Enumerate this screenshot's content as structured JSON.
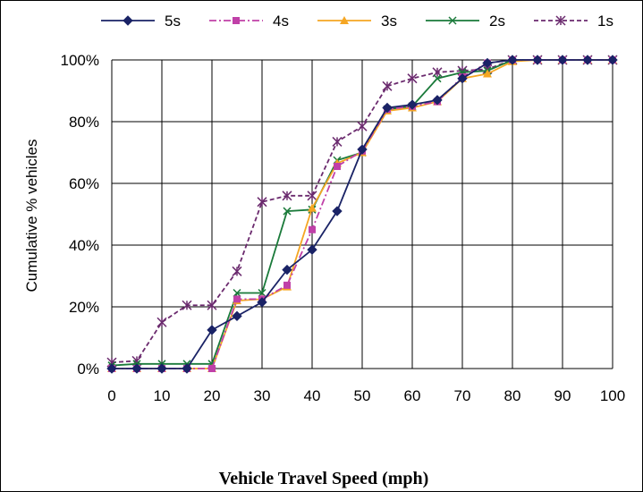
{
  "chart_data": {
    "type": "line",
    "xlabel": "Vehicle Travel Speed (mph)",
    "ylabel": "Cumulative % vehicles",
    "xlim": [
      0,
      100
    ],
    "ylim": [
      0,
      100
    ],
    "x_ticks": [
      "0",
      "10",
      "20",
      "30",
      "40",
      "50",
      "60",
      "70",
      "80",
      "90",
      "100"
    ],
    "y_ticks": [
      "0%",
      "20%",
      "40%",
      "60%",
      "80%",
      "100%"
    ],
    "grid": true,
    "legend_position": "top",
    "x": [
      0,
      5,
      10,
      15,
      20,
      25,
      30,
      35,
      40,
      45,
      50,
      55,
      60,
      65,
      70,
      75,
      80,
      85,
      90,
      95,
      100
    ],
    "series": [
      {
        "name": "5s",
        "color": "#1a2366",
        "dash": "solid",
        "marker": "diamond",
        "values": [
          0,
          0,
          0,
          0,
          12.5,
          17,
          21.5,
          32,
          38.5,
          51,
          71,
          84.5,
          85.5,
          87,
          94,
          99,
          100,
          100,
          100,
          100,
          100
        ]
      },
      {
        "name": "4s",
        "color": "#c040a8",
        "dash": "dashdot",
        "marker": "square",
        "values": [
          0,
          0,
          0,
          0,
          0,
          22.5,
          22.5,
          27,
          45,
          65.5,
          70.5,
          84,
          85,
          86.5,
          94.5,
          99,
          100,
          100,
          100,
          100,
          100
        ]
      },
      {
        "name": "3s",
        "color": "#f5a623",
        "dash": "solid",
        "marker": "triangle",
        "values": [
          0,
          0,
          0,
          0,
          0,
          22,
          22.5,
          26.5,
          52,
          66.5,
          70,
          83.5,
          84.5,
          86.5,
          94,
          95.5,
          99.5,
          100,
          100,
          100,
          100
        ]
      },
      {
        "name": "2s",
        "color": "#1a7a3a",
        "dash": "solid",
        "marker": "x",
        "values": [
          1,
          1.5,
          1.5,
          1.5,
          1.5,
          24.5,
          24.5,
          51,
          51.5,
          67.5,
          70,
          84,
          85,
          94,
          96,
          96.5,
          100,
          100,
          100,
          100,
          100
        ]
      },
      {
        "name": "1s",
        "color": "#6b2a6e",
        "dash": "dashed",
        "marker": "star",
        "values": [
          2,
          2.5,
          15,
          20.5,
          20.5,
          31.5,
          54,
          56,
          56,
          73.5,
          78.5,
          91.5,
          94,
          96,
          96.5,
          97,
          100,
          100,
          100,
          100,
          100
        ]
      }
    ]
  }
}
